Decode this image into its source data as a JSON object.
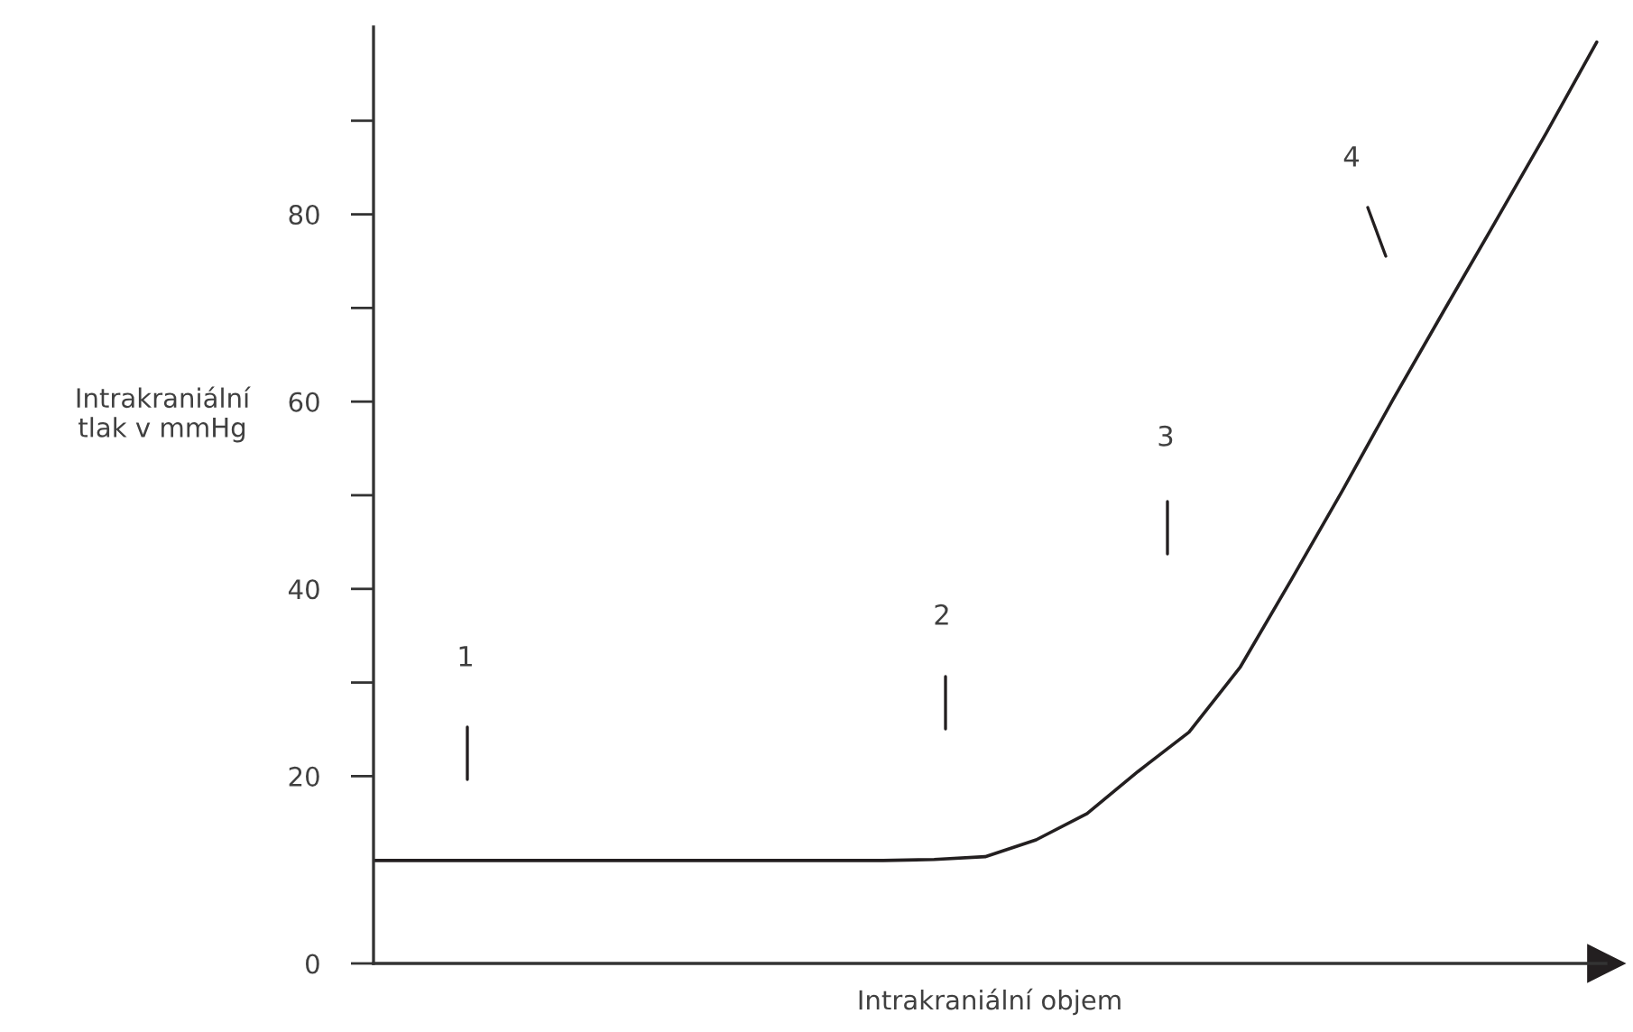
{
  "chart_data": {
    "type": "line",
    "xlabel": "Intrakraniální objem",
    "ylabel": "Intrakraniální\ntlak v mmHg",
    "categories": [
      null,
      null,
      null,
      null,
      null,
      null,
      null,
      null,
      null,
      null,
      null,
      null,
      null,
      null,
      null,
      null,
      null,
      null,
      null,
      null,
      null,
      null,
      null,
      null,
      null
    ],
    "series": [
      {
        "color": "#231f20",
        "values": [
          11,
          11,
          11,
          11,
          11,
          11,
          11,
          11,
          11,
          11,
          11,
          11.1,
          11.4,
          13.2,
          16,
          20.5,
          24.7,
          31.6,
          40.9,
          50.4,
          60.2,
          69.7,
          79.1,
          88.6,
          98.4
        ]
      }
    ],
    "ylim": [
      0,
      100
    ],
    "yticks": [
      0,
      20,
      {
        "value": 30,
        "label": null
      },
      40,
      {
        "value": 50,
        "label": null
      },
      60,
      {
        "value": 70,
        "label": null
      },
      80,
      {
        "value": 90,
        "label": null
      }
    ],
    "tick_labels": "y",
    "annotations": [
      "1",
      "2",
      "3",
      "4"
    ]
  }
}
